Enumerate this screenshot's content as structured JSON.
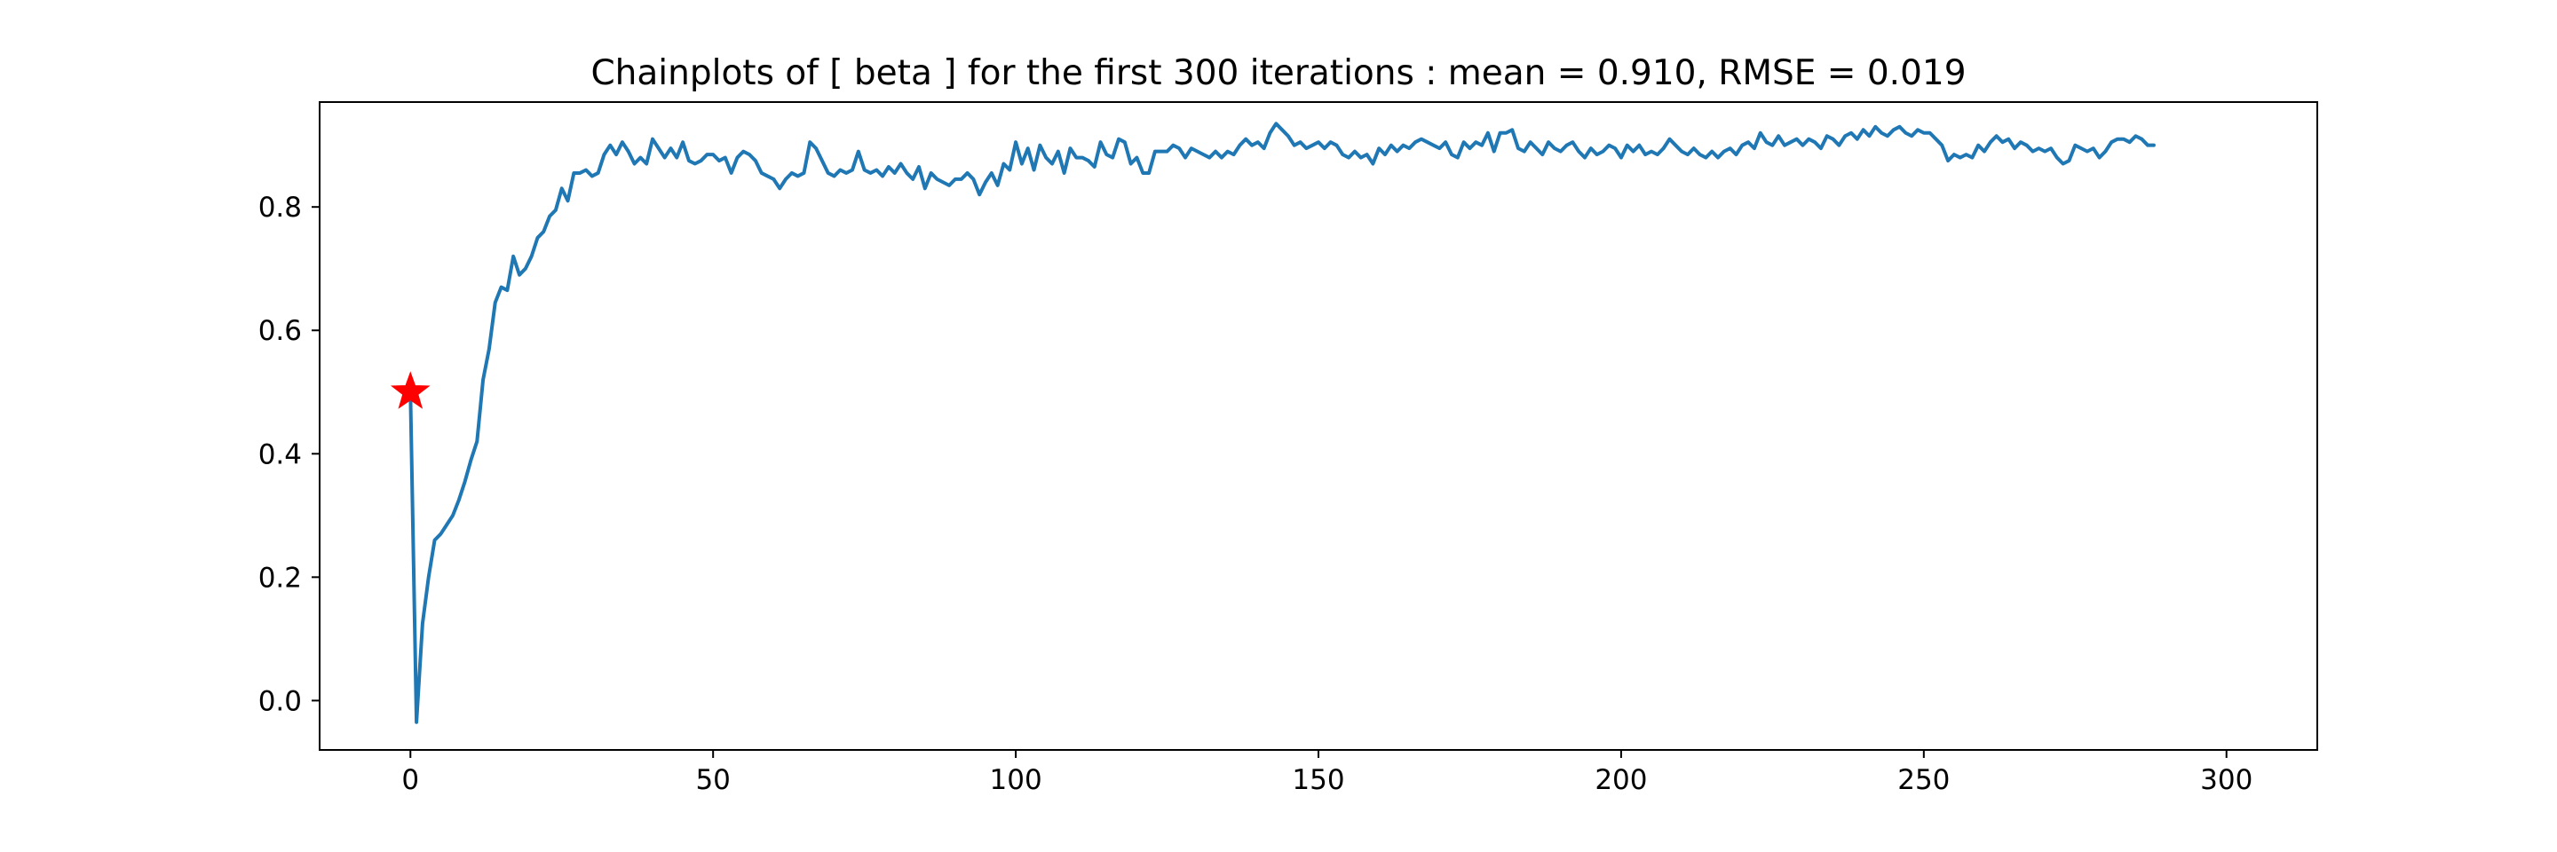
{
  "chart_data": {
    "type": "line",
    "title": "Chainplots of [ beta ] for the first 300 iterations : mean = 0.910, RMSE = 0.019",
    "xlabel": "",
    "ylabel": "",
    "xlim": [
      -15,
      315
    ],
    "ylim": [
      -0.08,
      0.97
    ],
    "xticks": [
      0,
      50,
      100,
      150,
      200,
      250,
      300
    ],
    "yticks": [
      0.0,
      0.2,
      0.4,
      0.6,
      0.8
    ],
    "xtick_labels": [
      "0",
      "50",
      "100",
      "150",
      "200",
      "250",
      "300"
    ],
    "ytick_labels": [
      "0.0",
      "0.2",
      "0.4",
      "0.6",
      "0.8"
    ],
    "grid": false,
    "series": [
      {
        "color": "#1f77b4",
        "x_start": 0,
        "x_step": 1,
        "values": [
          0.5,
          -0.035,
          0.125,
          0.2,
          0.26,
          0.27,
          0.285,
          0.3,
          0.325,
          0.355,
          0.39,
          0.42,
          0.52,
          0.57,
          0.645,
          0.67,
          0.665,
          0.72,
          0.69,
          0.7,
          0.72,
          0.75,
          0.76,
          0.785,
          0.795,
          0.83,
          0.81,
          0.855,
          0.855,
          0.86,
          0.85,
          0.855,
          0.885,
          0.9,
          0.885,
          0.905,
          0.89,
          0.87,
          0.88,
          0.87,
          0.91,
          0.895,
          0.88,
          0.895,
          0.88,
          0.905,
          0.875,
          0.87,
          0.875,
          0.885,
          0.885,
          0.875,
          0.88,
          0.855,
          0.88,
          0.89,
          0.885,
          0.875,
          0.855,
          0.85,
          0.845,
          0.83,
          0.845,
          0.855,
          0.85,
          0.855,
          0.905,
          0.895,
          0.875,
          0.855,
          0.85,
          0.86,
          0.855,
          0.86,
          0.89,
          0.86,
          0.855,
          0.86,
          0.85,
          0.865,
          0.855,
          0.87,
          0.855,
          0.845,
          0.865,
          0.83,
          0.855,
          0.845,
          0.84,
          0.835,
          0.845,
          0.845,
          0.855,
          0.845,
          0.82,
          0.84,
          0.855,
          0.835,
          0.87,
          0.86,
          0.905,
          0.87,
          0.895,
          0.86,
          0.9,
          0.88,
          0.87,
          0.89,
          0.855,
          0.895,
          0.88,
          0.88,
          0.875,
          0.865,
          0.905,
          0.885,
          0.88,
          0.91,
          0.905,
          0.87,
          0.88,
          0.855,
          0.855,
          0.89,
          0.89,
          0.89,
          0.9,
          0.895,
          0.88,
          0.895,
          0.89,
          0.885,
          0.88,
          0.89,
          0.88,
          0.89,
          0.885,
          0.9,
          0.91,
          0.9,
          0.905,
          0.895,
          0.92,
          0.935,
          0.925,
          0.915,
          0.9,
          0.905,
          0.895,
          0.9,
          0.905,
          0.895,
          0.905,
          0.9,
          0.885,
          0.88,
          0.89,
          0.88,
          0.885,
          0.87,
          0.895,
          0.885,
          0.9,
          0.89,
          0.9,
          0.895,
          0.905,
          0.91,
          0.905,
          0.9,
          0.895,
          0.905,
          0.885,
          0.88,
          0.905,
          0.895,
          0.905,
          0.9,
          0.92,
          0.89,
          0.92,
          0.92,
          0.925,
          0.895,
          0.89,
          0.905,
          0.895,
          0.885,
          0.905,
          0.895,
          0.89,
          0.9,
          0.905,
          0.89,
          0.88,
          0.895,
          0.885,
          0.89,
          0.9,
          0.895,
          0.88,
          0.9,
          0.89,
          0.9,
          0.885,
          0.89,
          0.885,
          0.895,
          0.91,
          0.9,
          0.89,
          0.885,
          0.895,
          0.885,
          0.88,
          0.89,
          0.88,
          0.89,
          0.895,
          0.885,
          0.9,
          0.905,
          0.895,
          0.92,
          0.905,
          0.9,
          0.915,
          0.9,
          0.905,
          0.91,
          0.9,
          0.91,
          0.905,
          0.895,
          0.915,
          0.91,
          0.9,
          0.915,
          0.92,
          0.91,
          0.925,
          0.915,
          0.93,
          0.92,
          0.915,
          0.925,
          0.93,
          0.92,
          0.915,
          0.925,
          0.92,
          0.92,
          0.91,
          0.9,
          0.875,
          0.885,
          0.88,
          0.885,
          0.88,
          0.9,
          0.89,
          0.905,
          0.915,
          0.905,
          0.91,
          0.895,
          0.905,
          0.9,
          0.89,
          0.895,
          0.89,
          0.895,
          0.88,
          0.87,
          0.875,
          0.9,
          0.895,
          0.89,
          0.895,
          0.88,
          0.89,
          0.905,
          0.91,
          0.91,
          0.905,
          0.915,
          0.91,
          0.9,
          0.9
        ]
      }
    ],
    "markers": [
      {
        "x": 0,
        "y": 0.5,
        "symbol": "star",
        "color": "#ff0000"
      }
    ]
  }
}
